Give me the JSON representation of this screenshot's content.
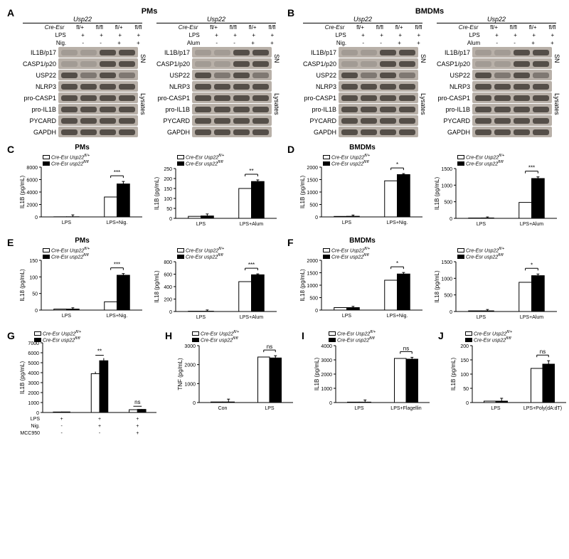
{
  "panels": {
    "A": {
      "title": "PMs",
      "subtitle": "Usp22",
      "treatments": [
        "Nig.",
        "Alum"
      ]
    },
    "B": {
      "title": "BMDMs",
      "subtitle": "Usp22",
      "treatments": [
        "Nig.",
        "Alum"
      ]
    }
  },
  "blot_header": {
    "cre": "Cre-Esr",
    "lps": "LPS",
    "genotypes": [
      "fl/+",
      "fl/fl",
      "fl/+",
      "fl/fl"
    ],
    "lps_marks": [
      "+",
      "+",
      "+",
      "+"
    ],
    "treat_marks": [
      "-",
      "-",
      "+",
      "+"
    ]
  },
  "blot_rows_sn": [
    "IL1B/p17",
    "CASP1/p20"
  ],
  "blot_rows_lysate": [
    "USP22",
    "NLRP3",
    "pro-CASP1",
    "pro-IL1B",
    "PYCARD",
    "GAPDH"
  ],
  "sn_label": "SN",
  "lysate_label": "Lysates",
  "blot_intensities": {
    "sn": [
      [
        "faint",
        "faint",
        "med",
        "med"
      ],
      [
        "faint",
        "faint",
        "med",
        "med"
      ]
    ],
    "lysate": [
      [
        "med",
        "light",
        "med",
        "light"
      ],
      [
        "med",
        "med",
        "med",
        "med"
      ],
      [
        "med",
        "med",
        "med",
        "med"
      ],
      [
        "med",
        "med",
        "med",
        "med"
      ],
      [
        "med",
        "med",
        "med",
        "med"
      ],
      [
        "med",
        "med",
        "med",
        "med"
      ]
    ]
  },
  "legend_open": "Cre-Esr Usp22",
  "legend_open_sup": "fl/+",
  "legend_fill": "Cre-Esr usp22",
  "legend_fill_sup": "fl/fl",
  "charts": {
    "C": {
      "title": "PMs",
      "ylabel": "IL1B (pg/mL)",
      "sub": [
        {
          "ymax": 8000,
          "ystep": 2000,
          "cats": [
            "LPS",
            "LPS+Nig."
          ],
          "open": [
            20,
            3200
          ],
          "fill": [
            25,
            5300
          ],
          "err": [
            0,
            300,
            0,
            400
          ],
          "sig": "***"
        },
        {
          "ymax": 250,
          "ystep": 50,
          "cats": [
            "LPS",
            "LPS+Alum"
          ],
          "open": [
            10,
            150
          ],
          "fill": [
            12,
            185
          ],
          "err": [
            0,
            10,
            0,
            8
          ],
          "sig": "**"
        }
      ]
    },
    "D": {
      "title": "BMDMs",
      "ylabel": "IL1B (pg/mL)",
      "sub": [
        {
          "ymax": 2000,
          "ystep": 500,
          "cats": [
            "LPS",
            "LPS+Nig."
          ],
          "open": [
            20,
            1450
          ],
          "fill": [
            25,
            1700
          ],
          "err": [
            0,
            50,
            0,
            40
          ],
          "sig": "*"
        },
        {
          "ymax": 1500,
          "ystep": 500,
          "cats": [
            "LPS",
            "LPS+Alum"
          ],
          "open": [
            10,
            480
          ],
          "fill": [
            12,
            1200
          ],
          "err": [
            0,
            30,
            0,
            50
          ],
          "sig": "***"
        }
      ]
    },
    "E": {
      "title": "PMs",
      "ylabel": "IL18 (pg/mL)",
      "sub": [
        {
          "ymax": 150,
          "ystep": 50,
          "cats": [
            "LPS",
            "LPS+Nig."
          ],
          "open": [
            3,
            25
          ],
          "fill": [
            3,
            105
          ],
          "err": [
            0,
            4,
            0,
            5
          ],
          "sig": "***"
        },
        {
          "ymax": 800,
          "ystep": 200,
          "cats": [
            "LPS",
            "LPS+Alum"
          ],
          "open": [
            5,
            480
          ],
          "fill": [
            5,
            590
          ],
          "err": [
            0,
            20,
            0,
            15
          ],
          "sig": "***"
        }
      ]
    },
    "F": {
      "title": "BMDMs",
      "ylabel": "IL18 (pg/mL)",
      "sub": [
        {
          "ymax": 2000,
          "ystep": 500,
          "cats": [
            "LPS",
            "LPS+Nig."
          ],
          "open": [
            100,
            1200
          ],
          "fill": [
            100,
            1450
          ],
          "err": [
            0,
            50,
            0,
            60
          ],
          "sig": "*"
        },
        {
          "ymax": 1500,
          "ystep": 500,
          "cats": [
            "LPS",
            "LPS+Alum"
          ],
          "open": [
            20,
            880
          ],
          "fill": [
            20,
            1080
          ],
          "err": [
            0,
            40,
            0,
            50
          ],
          "sig": "*"
        }
      ]
    },
    "G": {
      "ylabel": "IL1B (pg/mL)",
      "ymax": 7000,
      "ystep": 1000,
      "break_at": 300,
      "groups": 3,
      "open": [
        50,
        3900,
        280
      ],
      "fill": [
        55,
        5200,
        310
      ],
      "err": [
        0,
        0,
        200,
        260,
        30,
        30
      ],
      "sig": [
        "",
        "**",
        "ns"
      ],
      "x_rows": [
        {
          "label": "LPS",
          "marks": [
            "+",
            "+",
            "+"
          ]
        },
        {
          "label": "Nig.",
          "marks": [
            "-",
            "+",
            "+"
          ]
        },
        {
          "label": "MCC950",
          "marks": [
            "-",
            "-",
            "+"
          ]
        }
      ]
    },
    "H": {
      "ylabel": "TNF (pg/mL)",
      "ymax": 3000,
      "ystep": 1000,
      "cats": [
        "Con",
        "LPS"
      ],
      "open": [
        30,
        2400
      ],
      "fill": [
        30,
        2350
      ],
      "err": [
        0,
        150,
        0,
        120
      ],
      "sig": "ns"
    },
    "I": {
      "ylabel": "IL1B (pg/mL)",
      "ymax": 4000,
      "ystep": 1000,
      "cats": [
        "LPS",
        "LPS+Flagellin"
      ],
      "open": [
        30,
        3100
      ],
      "fill": [
        30,
        3050
      ],
      "err": [
        0,
        150,
        0,
        130
      ],
      "sig": "ns"
    },
    "J": {
      "ylabel": "IL1B (pg/mL)",
      "ymax": 200,
      "ystep": 50,
      "cats": [
        "LPS",
        "LPS+Poly(dA:dT)"
      ],
      "open": [
        5,
        120
      ],
      "fill": [
        5,
        135
      ],
      "err": [
        0,
        10,
        0,
        12
      ],
      "sig": "ns"
    }
  },
  "colors": {
    "bg": "#ffffff",
    "bar_fill": "#000000",
    "bar_open": "#ffffff",
    "blot_bg": "#b8b0a8",
    "band": "#2a2520"
  }
}
